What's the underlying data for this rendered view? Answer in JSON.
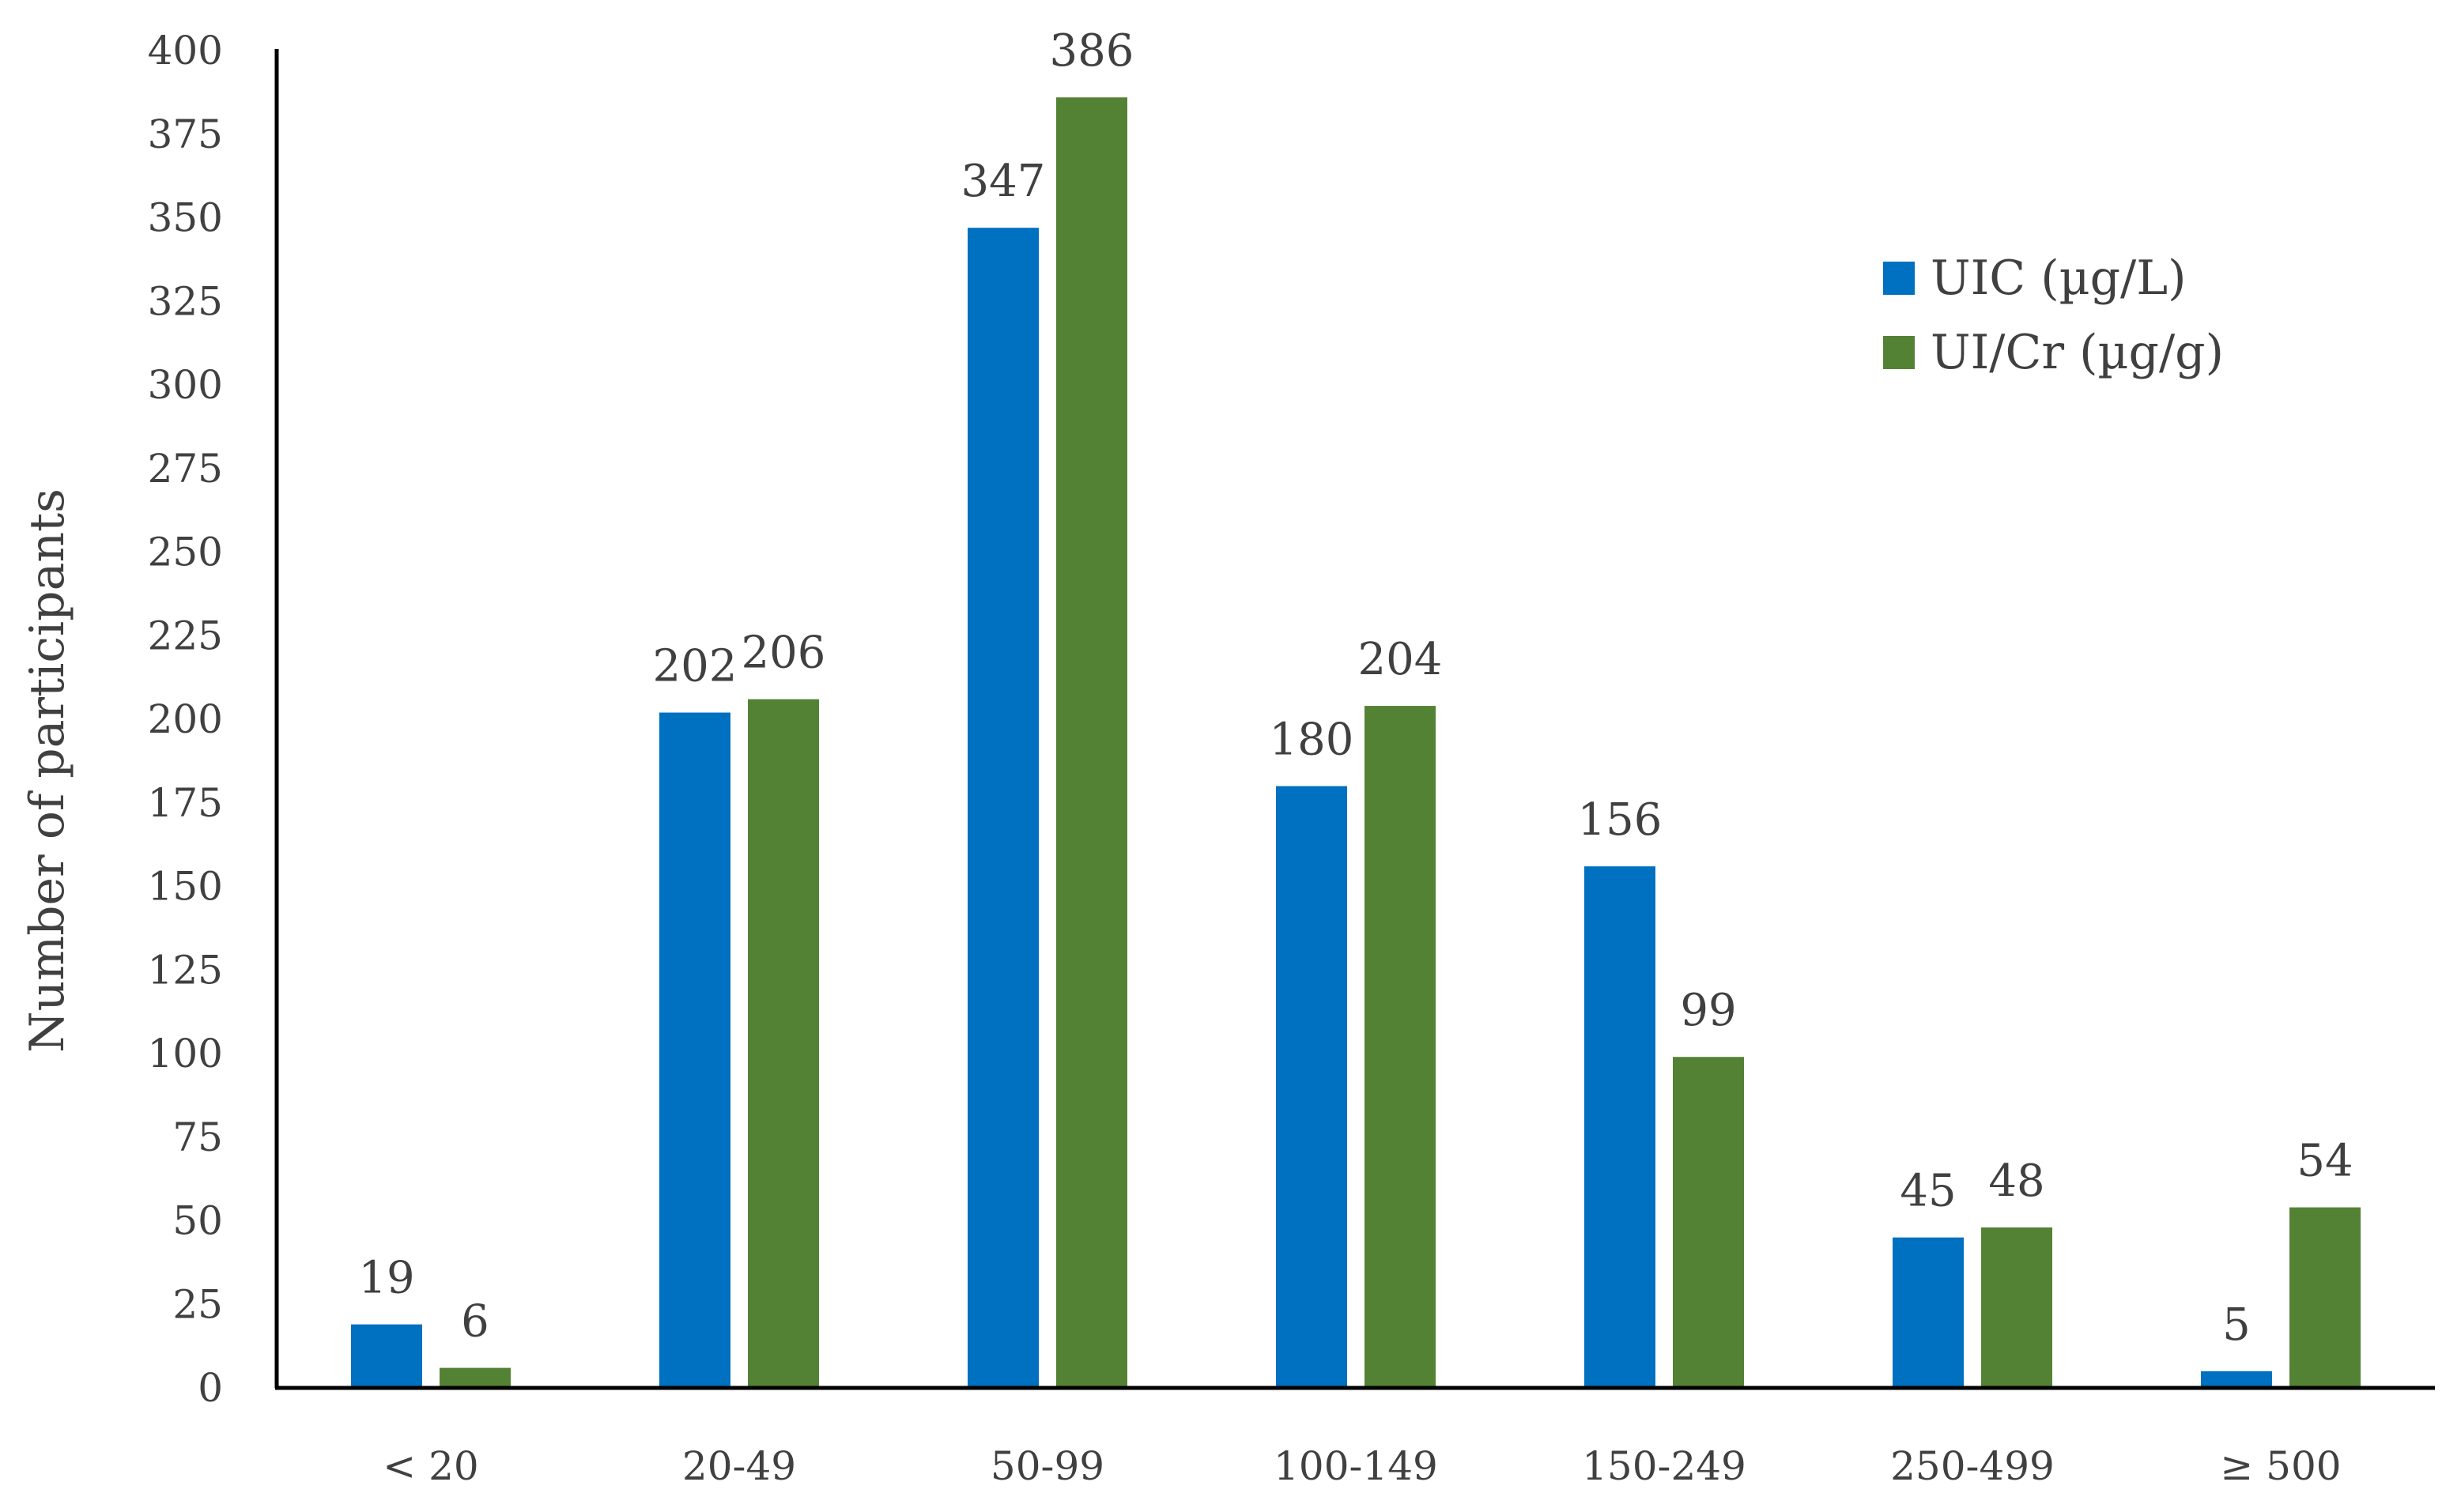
{
  "chart_data": {
    "type": "bar",
    "title": "",
    "xlabel": "",
    "ylabel": "Number of participants",
    "categories": [
      "< 20",
      "20-49",
      "50-99",
      "100-149",
      "150-249",
      "250-499",
      "≥ 500"
    ],
    "series": [
      {
        "name": "UIC (µg/L)",
        "values": [
          19,
          202,
          347,
          180,
          156,
          45,
          5
        ],
        "color": "#0070C0"
      },
      {
        "name": "UI/Cr (µg/g)",
        "values": [
          6,
          206,
          386,
          204,
          99,
          48,
          54
        ],
        "color": "#548235"
      }
    ],
    "ylim": [
      0,
      400
    ],
    "yticks": [
      0,
      25,
      50,
      75,
      100,
      125,
      150,
      175,
      200,
      225,
      250,
      275,
      300,
      325,
      350,
      375,
      400
    ],
    "grid": false,
    "legend_position": "top-right",
    "data_labels": true
  }
}
